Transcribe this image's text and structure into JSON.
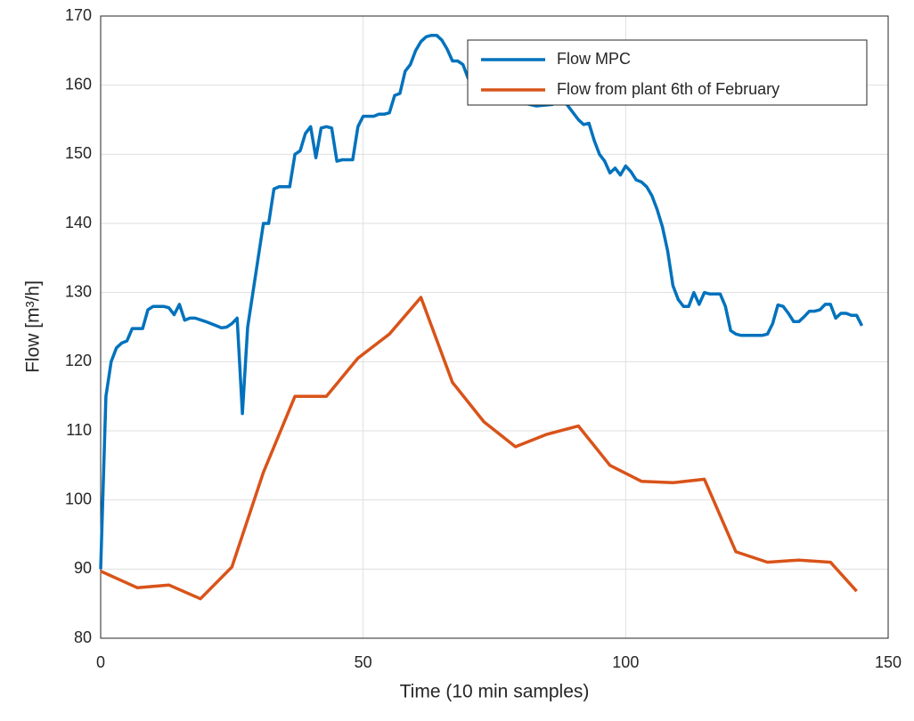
{
  "chart_data": {
    "type": "line",
    "xlabel": "Time (10 min samples)",
    "ylabel": "Flow [m³/h]",
    "xlim": [
      0,
      150
    ],
    "xticks": [
      0,
      50,
      100,
      150
    ],
    "ylim": [
      80,
      170
    ],
    "yticks": [
      80,
      90,
      100,
      110,
      120,
      130,
      140,
      150,
      160,
      170
    ],
    "grid": true,
    "legend": "top-right",
    "series": [
      {
        "name": "Flow MPC",
        "color": "#0072BD",
        "x": [
          0,
          1,
          2,
          3,
          4,
          5,
          6,
          7,
          8,
          9,
          10,
          11,
          12,
          13,
          14,
          15,
          16,
          17,
          18,
          20,
          22,
          23,
          24,
          25,
          26,
          27,
          28,
          29,
          30,
          31,
          32,
          33,
          34,
          35,
          36,
          37,
          38,
          39,
          40,
          41,
          42,
          43,
          44,
          45,
          46,
          47,
          48,
          49,
          50,
          51,
          52,
          53,
          54,
          55,
          56,
          57,
          58,
          59,
          60,
          61,
          62,
          63,
          64,
          65,
          66,
          67,
          68,
          69,
          70,
          72,
          75,
          80,
          83,
          86,
          88,
          90,
          91,
          92,
          93,
          94,
          95,
          96,
          97,
          98,
          99,
          100,
          101,
          102,
          103,
          104,
          105,
          106,
          107,
          108,
          109,
          110,
          111,
          112,
          113,
          114,
          115,
          116,
          117,
          118,
          119,
          120,
          121,
          122,
          124,
          126,
          127,
          128,
          129,
          130,
          131,
          132,
          133,
          134,
          135,
          136,
          137,
          138,
          139,
          140,
          141,
          142,
          143,
          144,
          145
        ],
        "values": [
          90,
          115,
          120,
          122,
          122.7,
          123,
          124.8,
          124.8,
          124.8,
          127.5,
          128,
          128,
          128,
          127.8,
          126.8,
          128.3,
          126,
          126.3,
          126.3,
          125.8,
          125.2,
          124.9,
          125,
          125.5,
          126.3,
          112.5,
          125,
          130,
          135,
          140,
          140,
          145,
          145.3,
          145.3,
          145.3,
          150,
          150.5,
          153,
          154,
          149.5,
          153.8,
          154,
          153.8,
          149,
          149.2,
          149.2,
          149.2,
          154,
          155.5,
          155.5,
          155.5,
          155.8,
          155.8,
          156,
          158.5,
          158.8,
          162,
          163,
          165,
          166.3,
          167,
          167.2,
          167.2,
          166.5,
          165.2,
          163.5,
          163.5,
          163,
          161,
          159,
          158,
          157.5,
          157,
          157.2,
          158,
          156,
          155,
          154.3,
          154.5,
          152,
          150,
          149,
          147.3,
          148,
          147,
          148.3,
          147.5,
          146.3,
          146,
          145.3,
          144,
          142,
          139.5,
          136,
          131,
          129,
          128,
          128,
          130,
          128.3,
          130,
          129.8,
          129.8,
          129.8,
          128,
          124.5,
          124,
          123.8,
          123.8,
          123.8,
          124,
          125.5,
          128.2,
          128,
          127,
          125.8,
          125.8,
          126.5,
          127.3,
          127.3,
          127.5,
          128.3,
          128.3,
          126.3,
          127,
          127,
          126.7,
          126.7,
          125.2
        ]
      },
      {
        "name": "Flow from plant 6th of February",
        "color": "#D95319",
        "x": [
          0,
          7,
          13,
          19,
          25,
          31,
          37,
          43,
          49,
          55,
          61,
          67,
          73,
          79,
          85,
          91,
          97,
          103,
          109,
          115,
          121,
          127,
          133,
          139,
          144
        ],
        "values": [
          89.7,
          87.3,
          87.7,
          85.7,
          90.3,
          104,
          115,
          115,
          120.5,
          124,
          129.3,
          117,
          111.3,
          107.7,
          109.5,
          110.7,
          105,
          102.7,
          102.5,
          103,
          92.5,
          91,
          91.3,
          91,
          86.8
        ]
      }
    ]
  }
}
